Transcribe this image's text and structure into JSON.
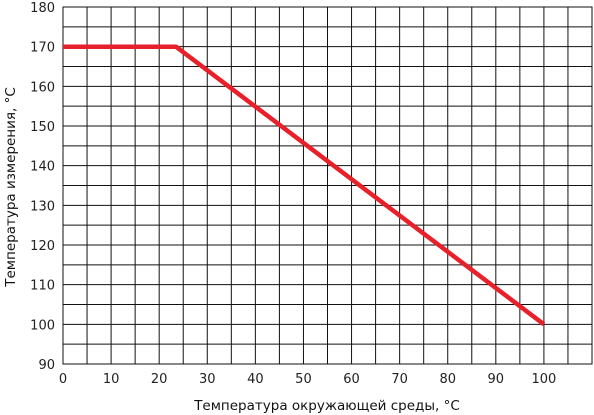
{
  "chart_data": {
    "type": "line",
    "title": "",
    "xlabel": "Температура окружающей среды, °C",
    "ylabel": "Температура измерения, °C",
    "xlim": [
      0,
      110
    ],
    "ylim": [
      90,
      180
    ],
    "x_ticks": [
      "0",
      "10",
      "20",
      "30",
      "40",
      "50",
      "60",
      "70",
      "80",
      "90",
      "100"
    ],
    "y_ticks": [
      "90",
      "100",
      "110",
      "120",
      "130",
      "140",
      "150",
      "160",
      "170",
      "180"
    ],
    "grid": true,
    "series": [
      {
        "color": "#e8202a",
        "points": [
          [
            0,
            170
          ],
          [
            23.5,
            170
          ],
          [
            100,
            100
          ]
        ]
      }
    ]
  }
}
